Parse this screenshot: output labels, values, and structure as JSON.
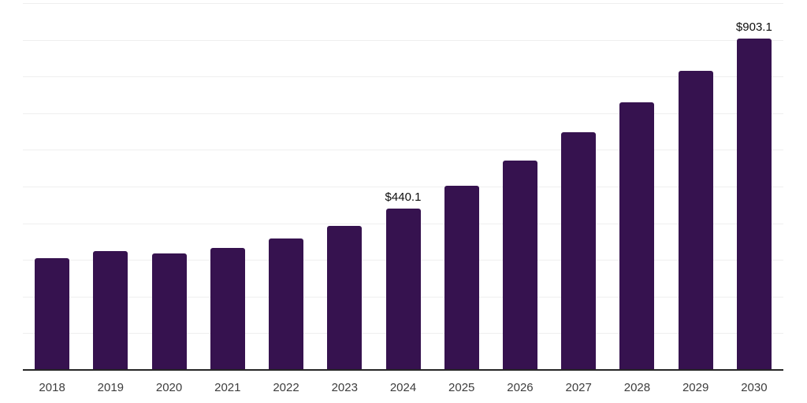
{
  "chart_data": {
    "type": "bar",
    "title": "",
    "xlabel": "",
    "ylabel": "",
    "categories": [
      "2018",
      "2019",
      "2020",
      "2021",
      "2022",
      "2023",
      "2024",
      "2025",
      "2026",
      "2027",
      "2028",
      "2029",
      "2030"
    ],
    "values": [
      305,
      324,
      318,
      333,
      358,
      392,
      440.1,
      502,
      571,
      648,
      729,
      815,
      903.1
    ],
    "annotations": [
      {
        "index": 6,
        "text": "$440.1"
      },
      {
        "index": 12,
        "text": "$903.1"
      }
    ],
    "ylim": [
      0,
      1000
    ],
    "grid_step": 100,
    "grid": "horizontal",
    "legend": "none"
  },
  "colors": {
    "bar": "#36124F",
    "gridline": "#efefef",
    "axis_line": "#262626",
    "tick_label": "#3d3d3d",
    "value_label": "#0d0d0d",
    "background": "#ffffff"
  }
}
